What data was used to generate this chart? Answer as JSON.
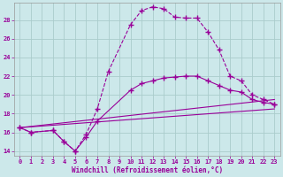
{
  "background_color": "#cce8ea",
  "grid_color": "#aacccc",
  "line_color": "#990099",
  "xlabel": "Windchill (Refroidissement éolien,°C)",
  "xlim": [
    -0.5,
    23.5
  ],
  "ylim": [
    13.5,
    29.8
  ],
  "yticks": [
    14,
    16,
    18,
    20,
    22,
    24,
    26,
    28
  ],
  "xticks": [
    0,
    1,
    2,
    3,
    4,
    5,
    6,
    7,
    8,
    9,
    10,
    11,
    12,
    13,
    14,
    15,
    16,
    17,
    18,
    19,
    20,
    21,
    22,
    23
  ],
  "curve_main_x": [
    0,
    1,
    3,
    4,
    5,
    6,
    7,
    8,
    10,
    11,
    12,
    13,
    14,
    15,
    16,
    17,
    18,
    19,
    20,
    21,
    22,
    23
  ],
  "curve_main_y": [
    16.5,
    16.0,
    16.2,
    15.0,
    14.0,
    15.8,
    18.5,
    22.5,
    27.5,
    29.0,
    29.4,
    29.2,
    28.3,
    28.2,
    28.2,
    26.7,
    24.8,
    22.0,
    21.5,
    20.0,
    19.5,
    19.0
  ],
  "curve_upper_x": [
    0,
    1,
    3,
    4,
    5,
    6,
    7,
    10,
    11,
    12,
    13,
    14,
    15,
    16,
    17,
    18,
    19,
    20,
    21,
    22,
    23
  ],
  "curve_upper_y": [
    16.5,
    16.0,
    16.2,
    15.0,
    14.0,
    15.5,
    17.2,
    20.5,
    21.2,
    21.5,
    21.8,
    21.9,
    22.0,
    22.0,
    21.5,
    21.0,
    20.5,
    20.3,
    19.5,
    19.2,
    19.0
  ],
  "line1_x": [
    0,
    23
  ],
  "line1_y": [
    16.5,
    19.5
  ],
  "line2_x": [
    0,
    23
  ],
  "line2_y": [
    16.5,
    18.5
  ]
}
